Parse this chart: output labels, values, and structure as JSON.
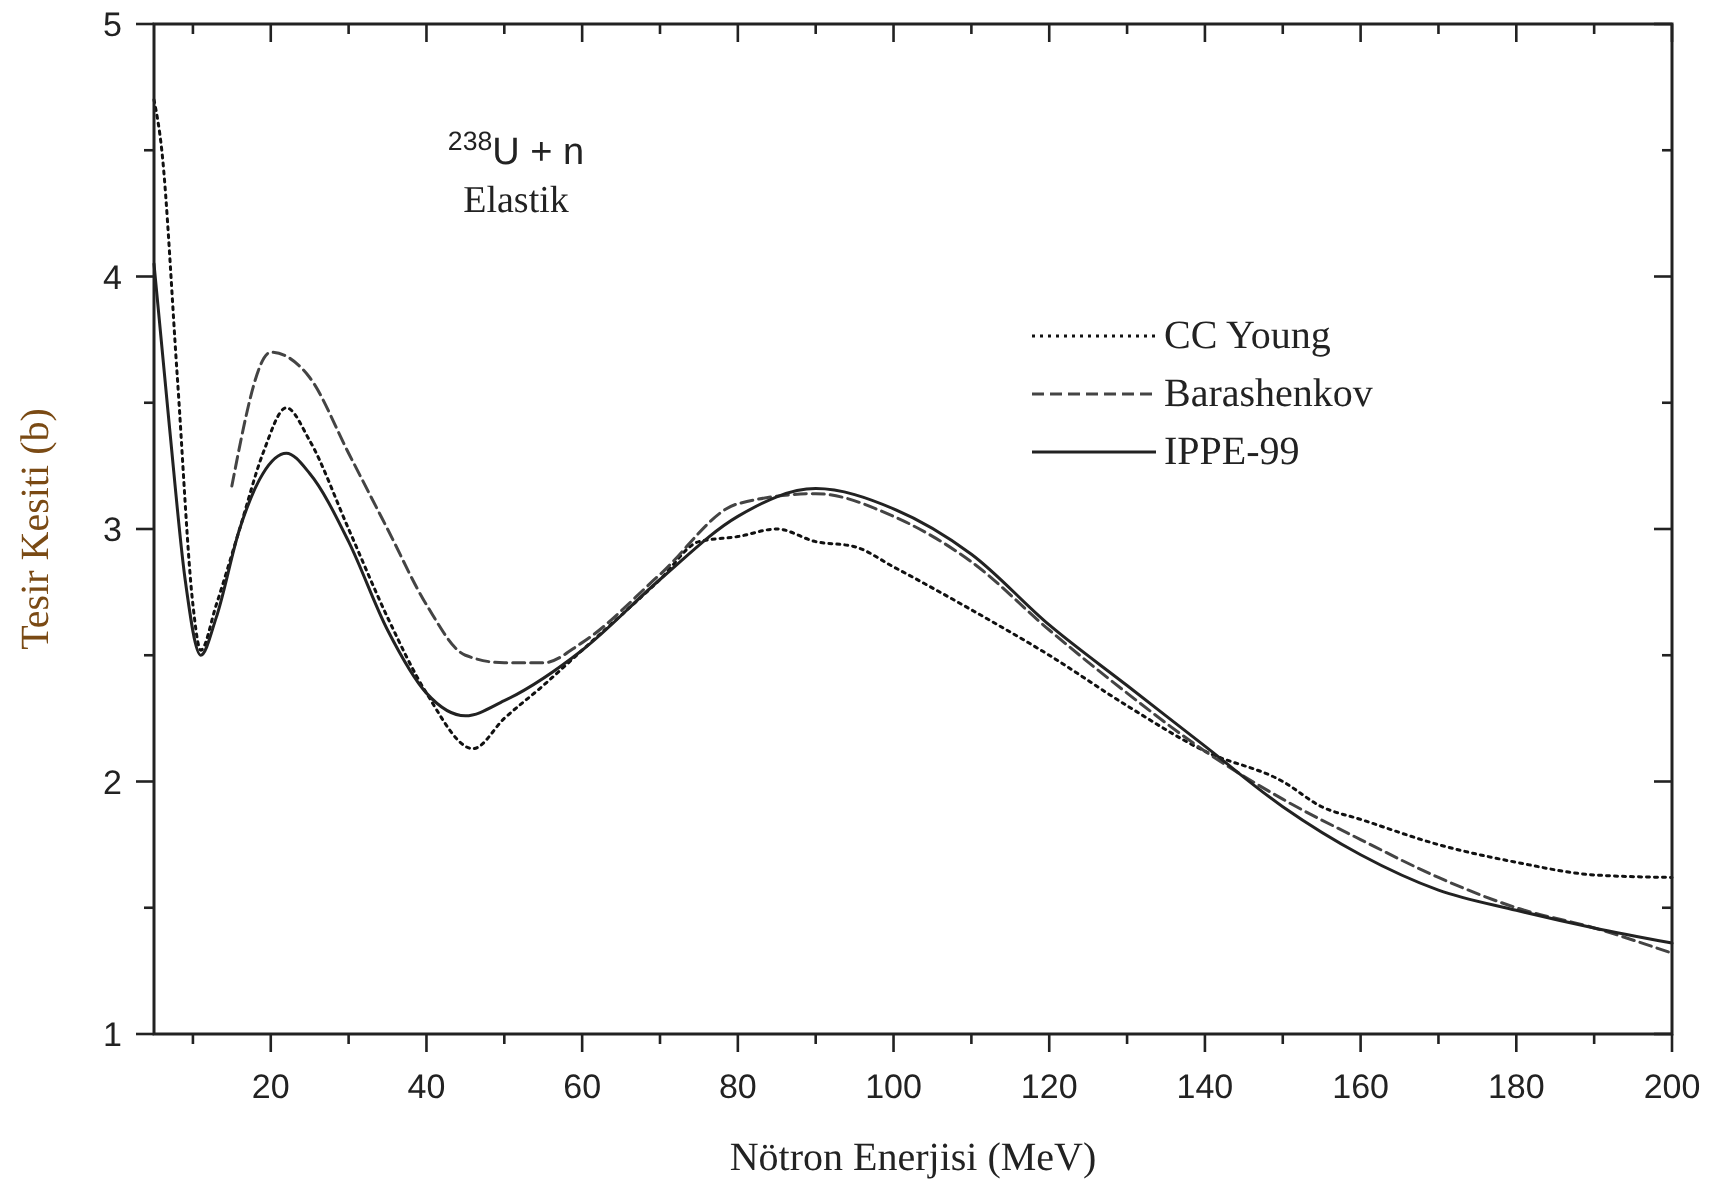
{
  "chart_data": {
    "type": "line",
    "xlabel": "Nötron Enerjisi (MeV)",
    "ylabel": "Tesir Kesiti (b)",
    "annotations": [
      "$^{238}$U + n",
      "Elastik"
    ],
    "xlim": [
      5,
      200
    ],
    "ylim": [
      1,
      5
    ],
    "xticks": [
      {
        "value": 10,
        "label": null
      },
      20,
      {
        "value": 30,
        "label": null
      },
      40,
      {
        "value": 50,
        "label": null
      },
      60,
      {
        "value": 70,
        "label": null
      },
      80,
      {
        "value": 90,
        "label": null
      },
      100,
      {
        "value": 110,
        "label": null
      },
      120,
      {
        "value": 130,
        "label": null
      },
      140,
      {
        "value": 150,
        "label": null
      },
      160,
      {
        "value": 170,
        "label": null
      },
      180,
      {
        "value": 190,
        "label": null
      },
      200
    ],
    "yticks": [
      1,
      {
        "value": 1.5,
        "label": null
      },
      2,
      {
        "value": 2.5,
        "label": null
      },
      3,
      {
        "value": 3.5,
        "label": null
      },
      4,
      {
        "value": 4.5,
        "label": null
      },
      5
    ],
    "legend": "top right",
    "grid": false,
    "series": [
      {
        "name": "CC Young",
        "color": "#111111",
        "line_style": "dotted",
        "x": [
          5,
          6,
          8,
          10,
          11,
          13,
          16,
          19,
          22,
          25,
          30,
          35,
          40,
          46,
          50,
          55,
          60,
          70,
          75,
          80,
          85,
          90,
          95,
          100,
          110,
          120,
          130,
          140,
          150,
          155,
          160,
          170,
          180,
          190,
          200
        ],
        "values": [
          4.7,
          4.5,
          3.6,
          2.7,
          2.52,
          2.7,
          3.0,
          3.3,
          3.48,
          3.35,
          3.0,
          2.65,
          2.35,
          2.13,
          2.25,
          2.38,
          2.52,
          2.8,
          2.95,
          2.97,
          3.0,
          2.95,
          2.93,
          2.85,
          2.68,
          2.5,
          2.3,
          2.12,
          2.0,
          1.9,
          1.85,
          1.75,
          1.68,
          1.63,
          1.62
        ]
      },
      {
        "name": "Barashenkov",
        "color": "#444444",
        "line_style": "dashed",
        "x": [
          15,
          20,
          25,
          30,
          35,
          40,
          45,
          50,
          55,
          60,
          70,
          80,
          90,
          100,
          110,
          120,
          130,
          140,
          150,
          160,
          170,
          180,
          190,
          200
        ],
        "values": [
          3.17,
          3.7,
          3.6,
          3.3,
          3.0,
          2.7,
          2.5,
          2.47,
          2.47,
          2.55,
          2.82,
          3.1,
          3.14,
          3.05,
          2.87,
          2.6,
          2.35,
          2.12,
          1.93,
          1.77,
          1.62,
          1.5,
          1.42,
          1.32
        ]
      },
      {
        "name": "IPPE-99",
        "color": "#222222",
        "line_style": "solid",
        "x": [
          5,
          7,
          9,
          11,
          13,
          16,
          19,
          22,
          25,
          30,
          35,
          40,
          45,
          50,
          60,
          70,
          80,
          90,
          100,
          110,
          120,
          130,
          140,
          150,
          160,
          170,
          180,
          190,
          200
        ],
        "values": [
          4.05,
          3.4,
          2.8,
          2.5,
          2.65,
          3.0,
          3.22,
          3.3,
          3.22,
          2.95,
          2.6,
          2.35,
          2.26,
          2.32,
          2.52,
          2.8,
          3.05,
          3.16,
          3.08,
          2.9,
          2.62,
          2.38,
          2.14,
          1.9,
          1.71,
          1.57,
          1.49,
          1.42,
          1.36
        ]
      }
    ]
  }
}
